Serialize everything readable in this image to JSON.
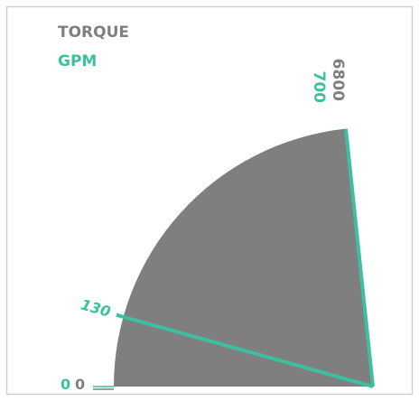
{
  "chart_data": {
    "type": "gauge",
    "series": [
      {
        "name": "TORQUE",
        "color": "#7f7f7f",
        "value": 6800,
        "lim": [
          0,
          6800
        ]
      },
      {
        "name": "GPM",
        "color": "#3dbfa0",
        "value": 130,
        "lim": [
          0,
          700
        ]
      }
    ]
  }
}
